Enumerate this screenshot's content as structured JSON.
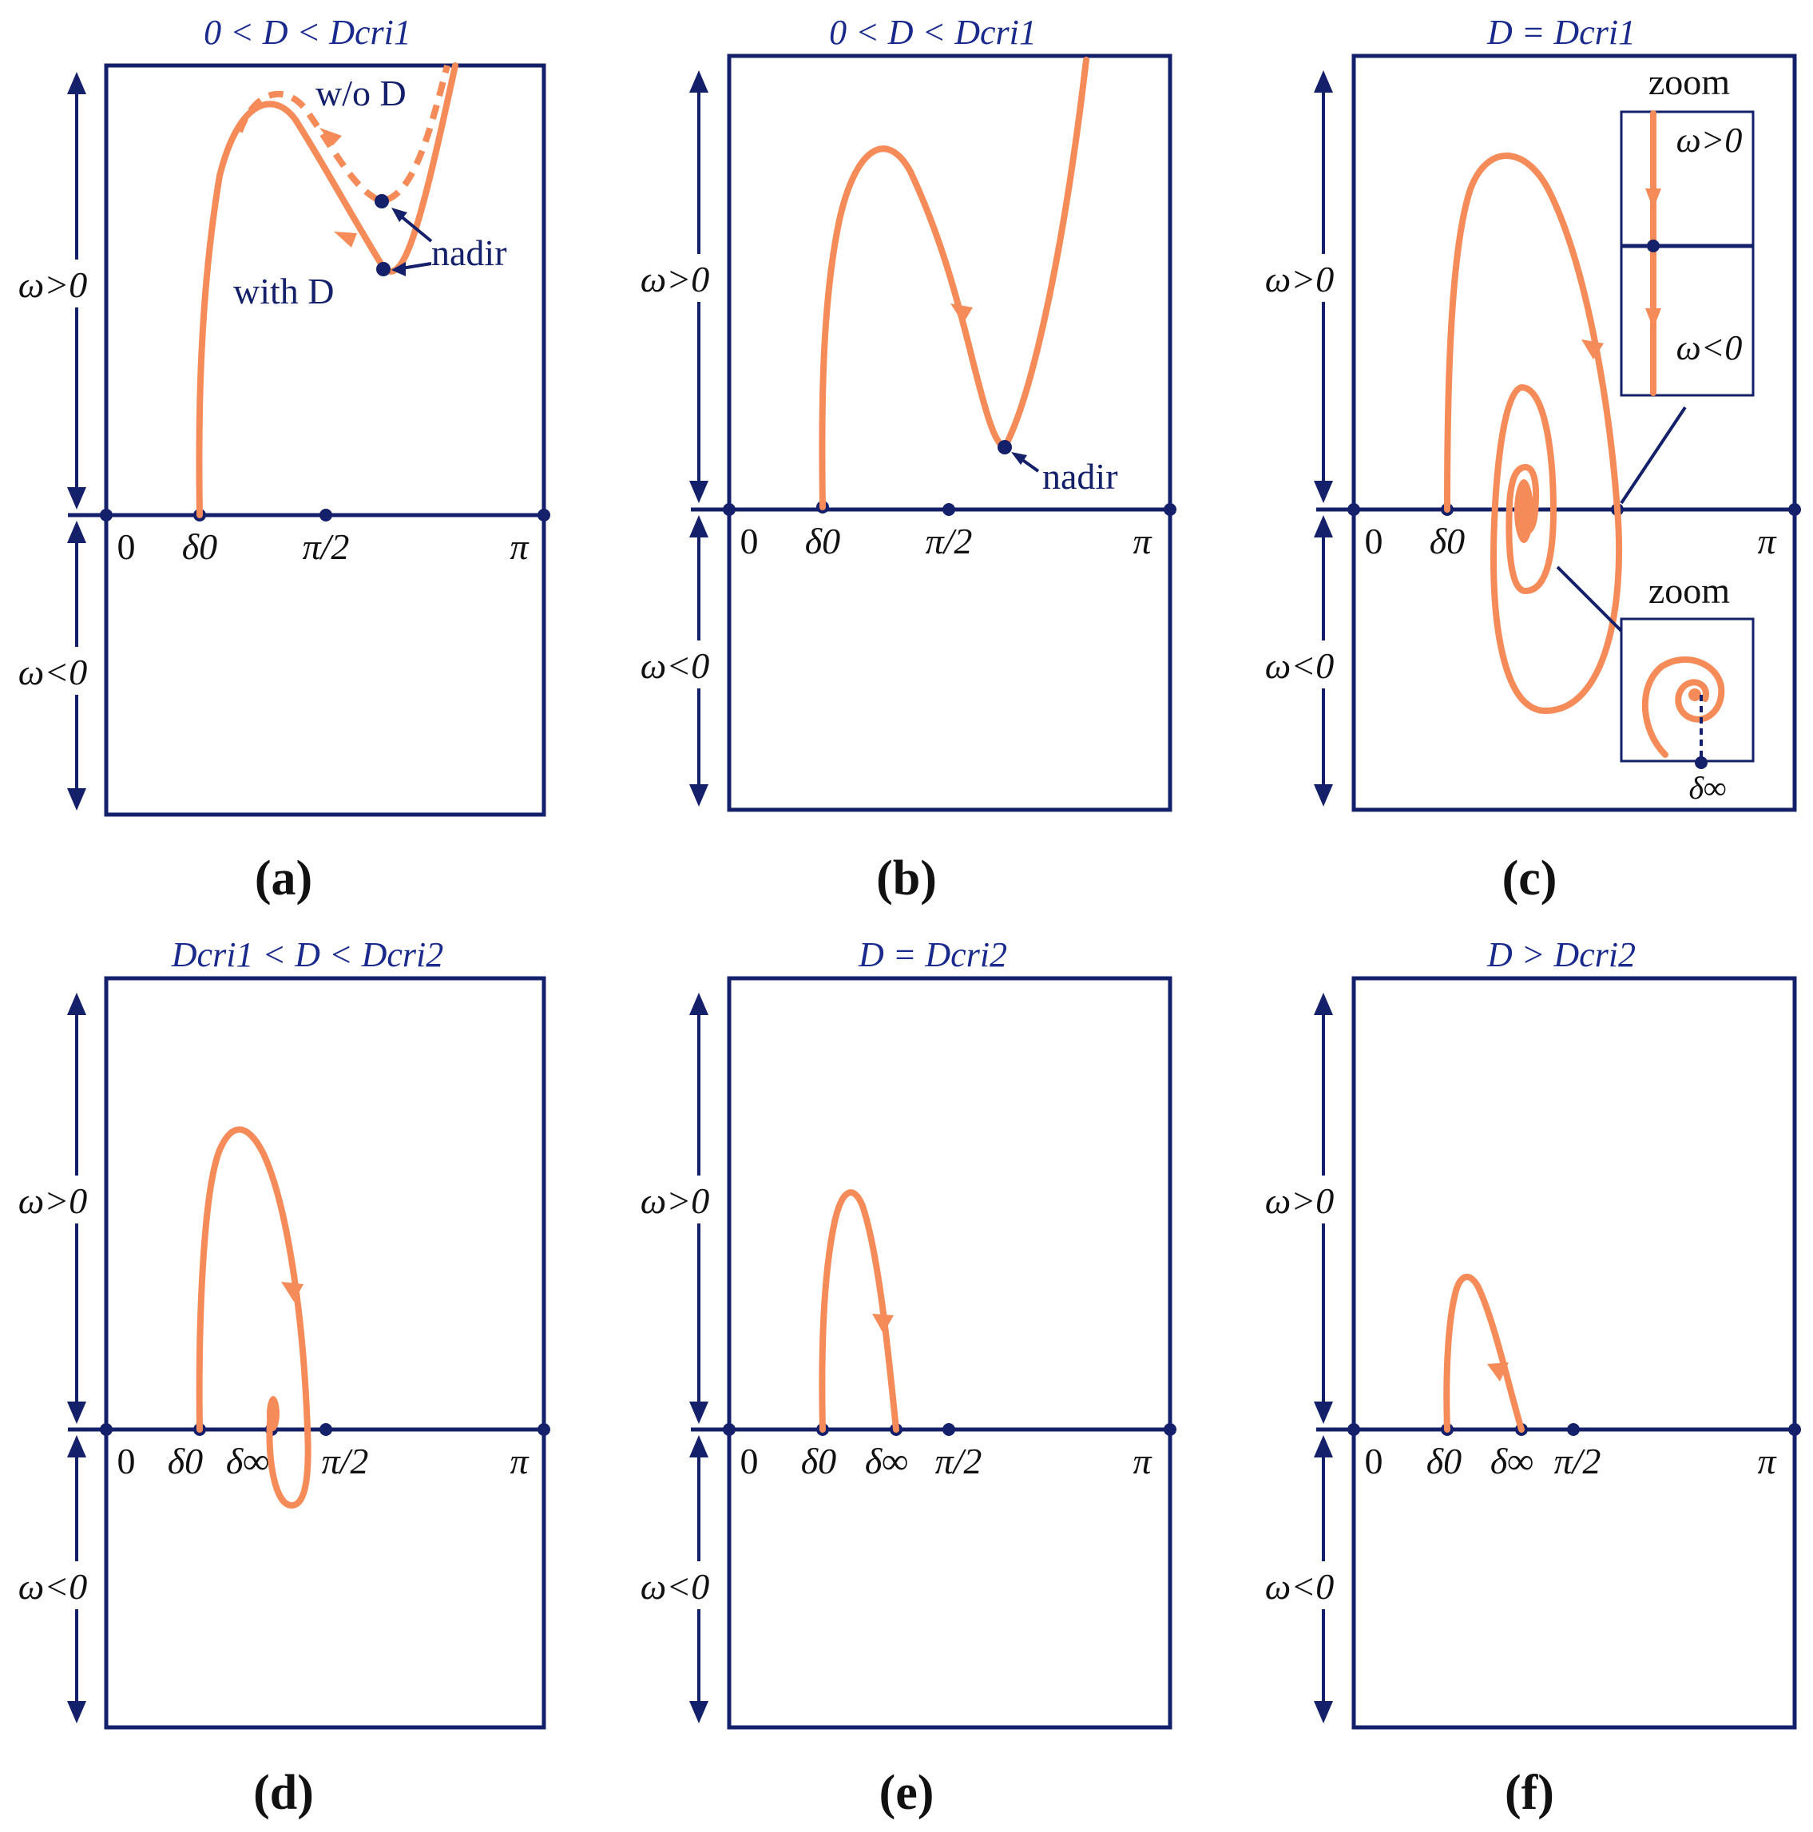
{
  "panels": [
    {
      "id": "a",
      "title": "0 < D < Dcri1",
      "caption": "(a)",
      "y_pos_label": "ω>0",
      "y_neg_label": "ω<0",
      "x_ticks": [
        "0",
        "δ0",
        "π/2",
        "π"
      ],
      "annotations": {
        "without_D": "w/o D",
        "with_D": "with D",
        "nadir": "nadir"
      }
    },
    {
      "id": "b",
      "title": "0 < D < Dcri1",
      "caption": "(b)",
      "y_pos_label": "ω>0",
      "y_neg_label": "ω<0",
      "x_ticks": [
        "0",
        "δ0",
        "π/2",
        "π"
      ],
      "annotations": {
        "nadir": "nadir"
      }
    },
    {
      "id": "c",
      "title": "D = Dcri1",
      "caption": "(c)",
      "y_pos_label": "ω>0",
      "y_neg_label": "ω<0",
      "x_ticks": [
        "0",
        "δ0",
        "π"
      ],
      "annotations": {
        "zoom_top": "zoom",
        "zoom_bottom": "zoom",
        "zoom_pos": "ω>0",
        "zoom_neg": "ω<0",
        "delta_inf": "δ∞"
      }
    },
    {
      "id": "d",
      "title": "Dcri1 < D < Dcri2",
      "caption": "(d)",
      "y_pos_label": "ω>0",
      "y_neg_label": "ω<0",
      "x_ticks": [
        "0",
        "δ0",
        "δ∞",
        "π/2",
        "π"
      ]
    },
    {
      "id": "e",
      "title": "D = Dcri2",
      "caption": "(e)",
      "y_pos_label": "ω>0",
      "y_neg_label": "ω<0",
      "x_ticks": [
        "0",
        "δ0",
        "δ∞",
        "π/2",
        "π"
      ]
    },
    {
      "id": "f",
      "title": "D > Dcri2",
      "caption": "(f)",
      "y_pos_label": "ω>0",
      "y_neg_label": "ω<0",
      "x_ticks": [
        "0",
        "δ0",
        "δ∞",
        "π/2",
        "π"
      ]
    }
  ]
}
